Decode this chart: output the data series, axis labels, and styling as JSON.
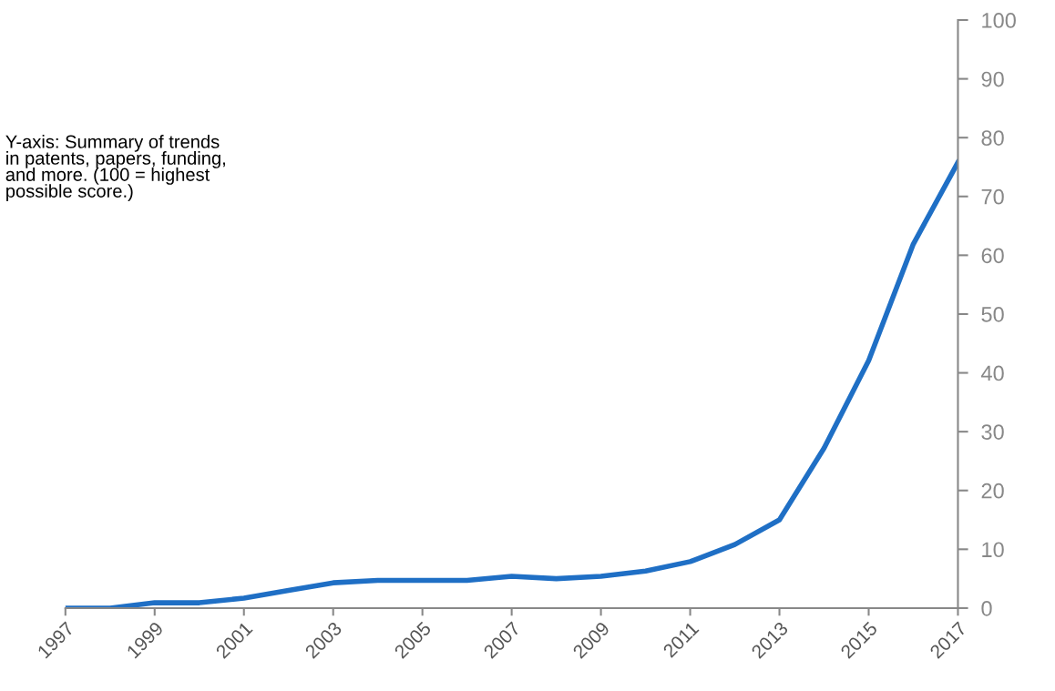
{
  "chart_data": {
    "type": "line",
    "x": [
      1997,
      1998,
      1999,
      2000,
      2001,
      2002,
      2003,
      2004,
      2005,
      2006,
      2007,
      2008,
      2009,
      2010,
      2011,
      2012,
      2013,
      2014,
      2015,
      2016,
      2017
    ],
    "series": [
      {
        "color": "#1f6fc5",
        "values": [
          0,
          0,
          0.9,
          0.9,
          1.7,
          3.0,
          4.3,
          4.7,
          4.7,
          4.7,
          5.4,
          5.0,
          5.4,
          6.3,
          7.9,
          10.8,
          15,
          27.2,
          42.1,
          61.9,
          75.8
        ]
      }
    ],
    "xlim": [
      1997,
      2017
    ],
    "xticks": [
      1997,
      1999,
      2001,
      2003,
      2005,
      2007,
      2009,
      2011,
      2013,
      2015,
      2017
    ],
    "ylim": [
      0,
      100
    ],
    "yticks": [
      0,
      10,
      20,
      30,
      40,
      50,
      60,
      70,
      80,
      90,
      100
    ],
    "annotations": [
      "Y-axis: Summary of trends\nin patents, papers, funding,\nand more. (100 = highest\npossible score.)"
    ],
    "grid": false,
    "legend": false,
    "marker": "none",
    "line_style": "solid"
  }
}
